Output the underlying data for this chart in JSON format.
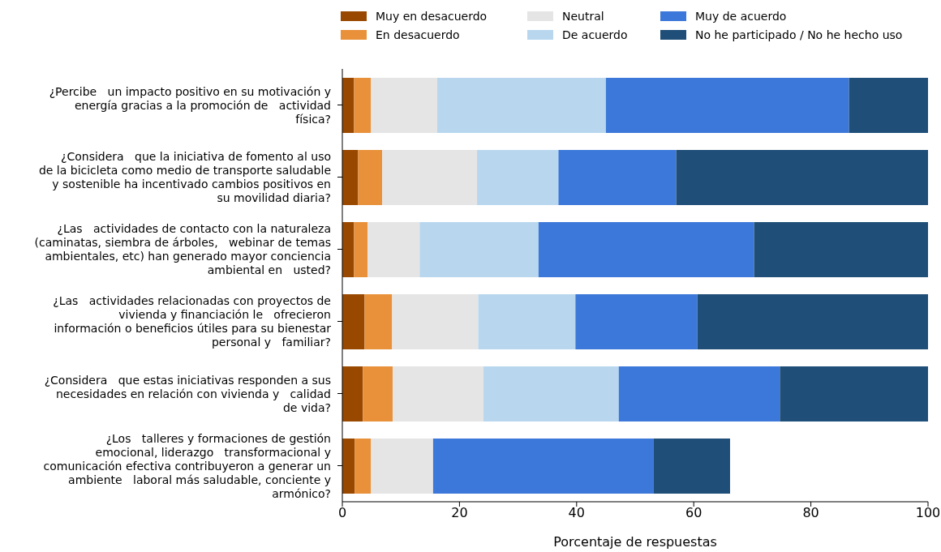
{
  "chart_data": {
    "type": "bar",
    "orientation": "horizontal",
    "stacked": true,
    "categories": [
      "¿Percibe   un impacto positivo en su motivación y\nenergía gracias a la promoción de   actividad\nfísica?",
      "¿Considera   que la iniciativa de fomento al uso\nde la bicicleta como medio de transporte saludable\ny sostenible ha incentivado cambios positivos en\nsu movilidad diaria?",
      "¿Las   actividades de contacto con la naturaleza\n(caminatas, siembra de árboles,   webinar de temas\nambientales, etc) han generado mayor conciencia\nambiental en   usted?",
      "¿Las   actividades relacionadas con proyectos de\nvivienda y financiación le   ofrecieron\ninformación o beneficios útiles para su bienestar\npersonal y   familiar?",
      "¿Considera   que estas iniciativas responden a sus\nnecesidades en relación con vivienda y   calidad\nde vida?",
      "¿Los   talleres y formaciones de gestión\nemocional, liderazgo   transformacional y\ncomunicación efectiva contribuyeron a generar un\nambiente   laboral más saludable, conciente y\narmónico?"
    ],
    "series": [
      {
        "name": "Muy en desacuerdo",
        "color": "#994800",
        "values": [
          2.0,
          2.7,
          2.0,
          3.8,
          3.5,
          2.1
        ]
      },
      {
        "name": "En desacuerdo",
        "color": "#e8913a",
        "values": [
          2.9,
          4.1,
          2.3,
          4.7,
          5.1,
          2.8
        ]
      },
      {
        "name": "Neutral",
        "color": "#e5e5e5",
        "values": [
          11.3,
          16.2,
          8.9,
          14.7,
          15.5,
          10.6
        ]
      },
      {
        "name": "De acuerdo",
        "color": "#b8d7ef",
        "values": [
          28.8,
          13.9,
          20.3,
          16.6,
          23.1,
          0
        ]
      },
      {
        "name": "Muy de acuerdo",
        "color": "#3c78d9",
        "values": [
          41.5,
          20.1,
          36.8,
          20.8,
          27.5,
          37.6
        ]
      },
      {
        "name": "No he participado / No he hecho uso",
        "color": "#1f4e79",
        "values": [
          13.5,
          43.0,
          29.7,
          39.4,
          25.3,
          13.1
        ]
      }
    ],
    "xlabel": "Porcentaje de respuestas",
    "xlim": [
      0,
      100
    ],
    "xticks": [
      0,
      20,
      40,
      60,
      80,
      100
    ],
    "grid": false,
    "legend": "top"
  }
}
